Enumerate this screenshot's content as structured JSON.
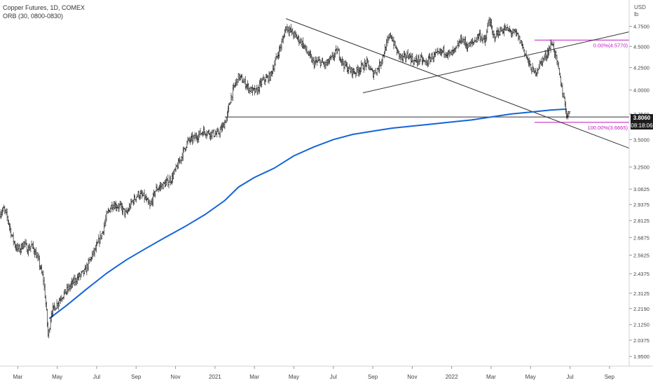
{
  "header": {
    "symbol_line": "Copper Futures, 1D, COMEX",
    "indicator_line": "ORB (30, 0800-0830)"
  },
  "price_axis": {
    "currency": "USD",
    "unit": "lb",
    "current_price": "3.8060",
    "countdown": "08:18:06"
  },
  "colors": {
    "price_bars": "#000000",
    "moving_average": "#1565d8",
    "fibonacci": "#c218c2",
    "trendlines": "#333333",
    "price_box": "#1e1e1e"
  },
  "chart_data": {
    "type": "ohlc-bar",
    "scale": "log",
    "ylim": [
      1.9,
      5.1
    ],
    "y_ticks": [
      {
        "value": 4.75,
        "label": "4.7500"
      },
      {
        "value": 4.5,
        "label": "4.5000"
      },
      {
        "value": 4.25,
        "label": "4.2500"
      },
      {
        "value": 4.0,
        "label": "4.0000"
      },
      {
        "value": 3.75,
        "label": "3.7500"
      },
      {
        "value": 3.5,
        "label": "3.5000"
      },
      {
        "value": 3.25,
        "label": "3.2500"
      },
      {
        "value": 3.0625,
        "label": "3.0625"
      },
      {
        "value": 2.9375,
        "label": "2.9375"
      },
      {
        "value": 2.8125,
        "label": "2.8125"
      },
      {
        "value": 2.6875,
        "label": "2.6875"
      },
      {
        "value": 2.5625,
        "label": "2.5625"
      },
      {
        "value": 2.4375,
        "label": "2.4375"
      },
      {
        "value": 2.3125,
        "label": "2.3125"
      },
      {
        "value": 2.219,
        "label": "2.2190"
      },
      {
        "value": 2.125,
        "label": "2.1250"
      },
      {
        "value": 2.0375,
        "label": "2.0375"
      },
      {
        "value": 1.95,
        "label": "1.9500"
      }
    ],
    "x_ticks": [
      "Mar",
      "May",
      "Jul",
      "Sep",
      "Nov",
      "2021",
      "Mar",
      "May",
      "Jul",
      "Sep",
      "Nov",
      "2022",
      "Mar",
      "May",
      "Jul",
      "Sep"
    ],
    "x_tick_months": [
      2,
      4,
      6,
      8,
      10,
      12,
      14,
      16,
      18,
      20,
      22,
      24,
      26,
      28,
      30,
      32
    ],
    "x_range_months": [
      1.1,
      33.0
    ],
    "price_path": [
      [
        1.1,
        2.87
      ],
      [
        1.3,
        2.9
      ],
      [
        1.5,
        2.82
      ],
      [
        1.7,
        2.7
      ],
      [
        1.9,
        2.62
      ],
      [
        2.1,
        2.6
      ],
      [
        2.3,
        2.65
      ],
      [
        2.5,
        2.6
      ],
      [
        2.7,
        2.63
      ],
      [
        2.9,
        2.58
      ],
      [
        3.1,
        2.5
      ],
      [
        3.3,
        2.4
      ],
      [
        3.45,
        2.21
      ],
      [
        3.55,
        2.05
      ],
      [
        3.7,
        2.2
      ],
      [
        3.9,
        2.23
      ],
      [
        4.2,
        2.29
      ],
      [
        4.5,
        2.33
      ],
      [
        4.8,
        2.38
      ],
      [
        5.1,
        2.42
      ],
      [
        5.4,
        2.45
      ],
      [
        5.7,
        2.54
      ],
      [
        6.0,
        2.62
      ],
      [
        6.3,
        2.73
      ],
      [
        6.55,
        2.87
      ],
      [
        6.8,
        2.94
      ],
      [
        7.2,
        2.92
      ],
      [
        7.5,
        2.86
      ],
      [
        7.8,
        2.96
      ],
      [
        8.1,
        3.02
      ],
      [
        8.4,
        3.0
      ],
      [
        8.7,
        2.92
      ],
      [
        9.0,
        3.06
      ],
      [
        9.4,
        3.1
      ],
      [
        9.8,
        3.15
      ],
      [
        10.2,
        3.3
      ],
      [
        10.6,
        3.48
      ],
      [
        11.0,
        3.52
      ],
      [
        11.4,
        3.58
      ],
      [
        11.8,
        3.56
      ],
      [
        12.1,
        3.55
      ],
      [
        12.4,
        3.62
      ],
      [
        12.6,
        3.72
      ],
      [
        12.8,
        3.92
      ],
      [
        13.0,
        4.05
      ],
      [
        13.2,
        4.15
      ],
      [
        13.5,
        4.08
      ],
      [
        13.8,
        4.0
      ],
      [
        14.1,
        3.98
      ],
      [
        14.4,
        4.1
      ],
      [
        14.8,
        4.15
      ],
      [
        15.1,
        4.35
      ],
      [
        15.4,
        4.55
      ],
      [
        15.6,
        4.75
      ],
      [
        15.8,
        4.7
      ],
      [
        16.1,
        4.62
      ],
      [
        16.4,
        4.55
      ],
      [
        16.7,
        4.42
      ],
      [
        17.0,
        4.3
      ],
      [
        17.3,
        4.32
      ],
      [
        17.6,
        4.28
      ],
      [
        17.9,
        4.35
      ],
      [
        18.2,
        4.45
      ],
      [
        18.5,
        4.3
      ],
      [
        18.8,
        4.22
      ],
      [
        19.1,
        4.2
      ],
      [
        19.4,
        4.25
      ],
      [
        19.7,
        4.3
      ],
      [
        20.0,
        4.18
      ],
      [
        20.3,
        4.25
      ],
      [
        20.6,
        4.45
      ],
      [
        20.9,
        4.65
      ],
      [
        21.2,
        4.45
      ],
      [
        21.5,
        4.35
      ],
      [
        21.8,
        4.4
      ],
      [
        22.1,
        4.32
      ],
      [
        22.4,
        4.35
      ],
      [
        22.7,
        4.3
      ],
      [
        23.0,
        4.38
      ],
      [
        23.3,
        4.4
      ],
      [
        23.6,
        4.45
      ],
      [
        23.9,
        4.4
      ],
      [
        24.2,
        4.45
      ],
      [
        24.5,
        4.6
      ],
      [
        24.8,
        4.5
      ],
      [
        25.1,
        4.55
      ],
      [
        25.4,
        4.65
      ],
      [
        25.7,
        4.55
      ],
      [
        25.9,
        4.85
      ],
      [
        26.1,
        4.62
      ],
      [
        26.4,
        4.68
      ],
      [
        26.7,
        4.72
      ],
      [
        27.0,
        4.68
      ],
      [
        27.3,
        4.65
      ],
      [
        27.6,
        4.5
      ],
      [
        27.9,
        4.3
      ],
      [
        28.2,
        4.18
      ],
      [
        28.5,
        4.3
      ],
      [
        28.8,
        4.4
      ],
      [
        29.1,
        4.55
      ],
      [
        29.3,
        4.35
      ],
      [
        29.5,
        4.12
      ],
      [
        29.7,
        3.9
      ],
      [
        29.85,
        3.72
      ],
      [
        30.0,
        3.8
      ]
    ],
    "moving_average": [
      [
        3.6,
        2.16
      ],
      [
        4.5,
        2.24
      ],
      [
        5.5,
        2.34
      ],
      [
        6.5,
        2.44
      ],
      [
        7.5,
        2.53
      ],
      [
        8.5,
        2.61
      ],
      [
        9.5,
        2.69
      ],
      [
        10.5,
        2.77
      ],
      [
        11.5,
        2.86
      ],
      [
        12.5,
        2.97
      ],
      [
        13.2,
        3.08
      ],
      [
        14.0,
        3.16
      ],
      [
        15.0,
        3.24
      ],
      [
        16.0,
        3.35
      ],
      [
        17.0,
        3.43
      ],
      [
        18.0,
        3.5
      ],
      [
        19.0,
        3.55
      ],
      [
        20.0,
        3.58
      ],
      [
        21.0,
        3.61
      ],
      [
        22.0,
        3.63
      ],
      [
        23.0,
        3.65
      ],
      [
        24.0,
        3.67
      ],
      [
        25.0,
        3.69
      ],
      [
        26.0,
        3.72
      ],
      [
        27.0,
        3.75
      ],
      [
        28.0,
        3.77
      ],
      [
        29.0,
        3.79
      ],
      [
        29.8,
        3.8
      ]
    ],
    "trendlines": [
      {
        "name": "descending-trendline",
        "points": [
          [
            15.6,
            4.85
          ],
          [
            33.0,
            3.42
          ]
        ]
      },
      {
        "name": "ascending-trendline",
        "points": [
          [
            19.5,
            3.97
          ],
          [
            33.0,
            4.68
          ]
        ]
      },
      {
        "name": "horizontal-support",
        "points": [
          [
            12.5,
            3.72
          ],
          [
            33.0,
            3.72
          ]
        ]
      }
    ],
    "fibonacci": {
      "top": {
        "value": 4.577,
        "label": "0.00%(4.5770)"
      },
      "bottom": {
        "value": 3.6665,
        "label": "100.00%(3.6665)"
      },
      "x_range": [
        28.2,
        33.0
      ]
    },
    "current_price": 3.806
  }
}
